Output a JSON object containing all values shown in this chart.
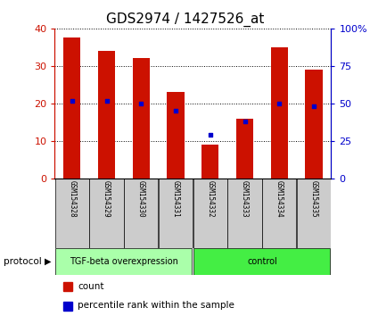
{
  "title": "GDS2974 / 1427526_at",
  "samples": [
    "GSM154328",
    "GSM154329",
    "GSM154330",
    "GSM154331",
    "GSM154332",
    "GSM154333",
    "GSM154334",
    "GSM154335"
  ],
  "count_values": [
    37.5,
    34.0,
    32.0,
    23.0,
    9.0,
    16.0,
    35.0,
    29.0
  ],
  "percentile_values": [
    52,
    52,
    50,
    45,
    29,
    38,
    50,
    48
  ],
  "ylim_left": [
    0,
    40
  ],
  "ylim_right": [
    0,
    100
  ],
  "yticks_left": [
    0,
    10,
    20,
    30,
    40
  ],
  "ytick_labels_left": [
    "0",
    "10",
    "20",
    "30",
    "40"
  ],
  "yticks_right": [
    0,
    25,
    50,
    75,
    100
  ],
  "ytick_labels_right": [
    "0",
    "25",
    "50",
    "75",
    "100%"
  ],
  "bar_color": "#cc1100",
  "percentile_color": "#0000cc",
  "bg_color": "#ffffff",
  "grid_color": "#000000",
  "protocol_groups": [
    {
      "label": "TGF-beta overexpression",
      "start": 0,
      "end": 4,
      "color": "#aaffaa"
    },
    {
      "label": "control",
      "start": 4,
      "end": 8,
      "color": "#44ee44"
    }
  ],
  "protocol_label": "protocol",
  "legend_count": "count",
  "legend_percentile": "percentile rank within the sample",
  "bar_width": 0.5,
  "tick_label_color_left": "#cc1100",
  "tick_label_color_right": "#0000cc",
  "title_fontsize": 11,
  "axis_fontsize": 8,
  "sample_bg_color": "#cccccc"
}
